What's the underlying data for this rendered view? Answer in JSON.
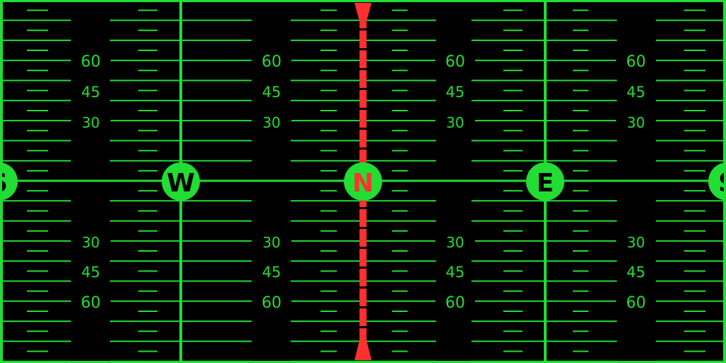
{
  "colors": {
    "background": "#000000",
    "scale": "#22dd33",
    "heading_marker": "#ff3030",
    "cardinal_fill": "#22dd33",
    "cardinal_text": "#000000",
    "north_text": "#ff3030"
  },
  "headings": [
    {
      "label": "S",
      "heading": -180
    },
    {
      "label": "W",
      "heading": -90
    },
    {
      "label": "N",
      "heading": 0
    },
    {
      "label": "E",
      "heading": 90
    },
    {
      "label": "S",
      "heading": 180
    }
  ],
  "pitch_labels": {
    "upper": [
      "60",
      "45",
      "30"
    ],
    "lower": [
      "30",
      "45",
      "60"
    ]
  }
}
